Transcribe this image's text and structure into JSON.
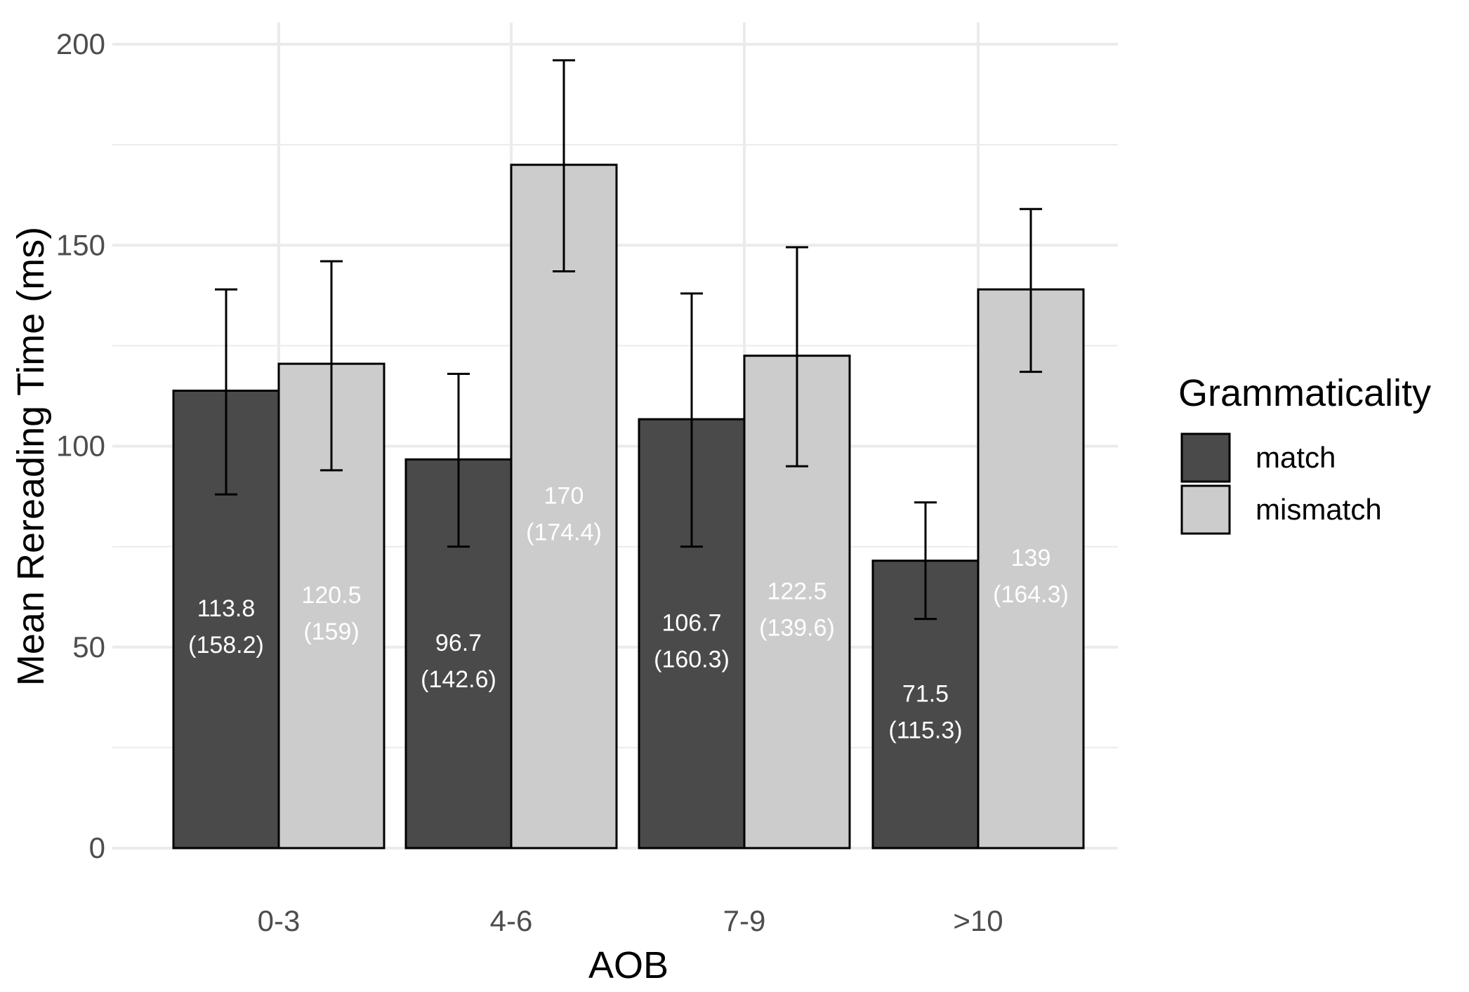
{
  "chart_data": {
    "type": "bar",
    "xlabel": "AOB",
    "ylabel": "Mean Rereading Time (ms)",
    "ylim": [
      0,
      200
    ],
    "yticks": [
      0,
      50,
      100,
      150,
      200
    ],
    "grid": true,
    "legend_position": "right",
    "legend_title": "Grammaticality",
    "categories": [
      "0-3",
      "4-6",
      "7-9",
      ">10"
    ],
    "series": [
      {
        "name": "match",
        "color": "#4a4a4a",
        "values": [
          113.8,
          96.7,
          106.7,
          71.5
        ],
        "error_low": [
          88,
          75,
          75,
          57
        ],
        "error_high": [
          139,
          118,
          138,
          86
        ],
        "labels": [
          [
            "113.8",
            "(158.2)"
          ],
          [
            "96.7",
            "(142.6)"
          ],
          [
            "106.7",
            "(160.3)"
          ],
          [
            "71.5",
            "(115.3)"
          ]
        ]
      },
      {
        "name": "mismatch",
        "color": "#cccccc",
        "values": [
          120.5,
          170,
          122.5,
          139
        ],
        "error_low": [
          94,
          143.5,
          95,
          118.5
        ],
        "error_high": [
          146,
          196,
          149.5,
          159
        ],
        "labels": [
          [
            "120.5",
            "(159)"
          ],
          [
            "170",
            "(174.4)"
          ],
          [
            "122.5",
            "(139.6)"
          ],
          [
            "139",
            "(164.3)"
          ]
        ]
      }
    ]
  }
}
